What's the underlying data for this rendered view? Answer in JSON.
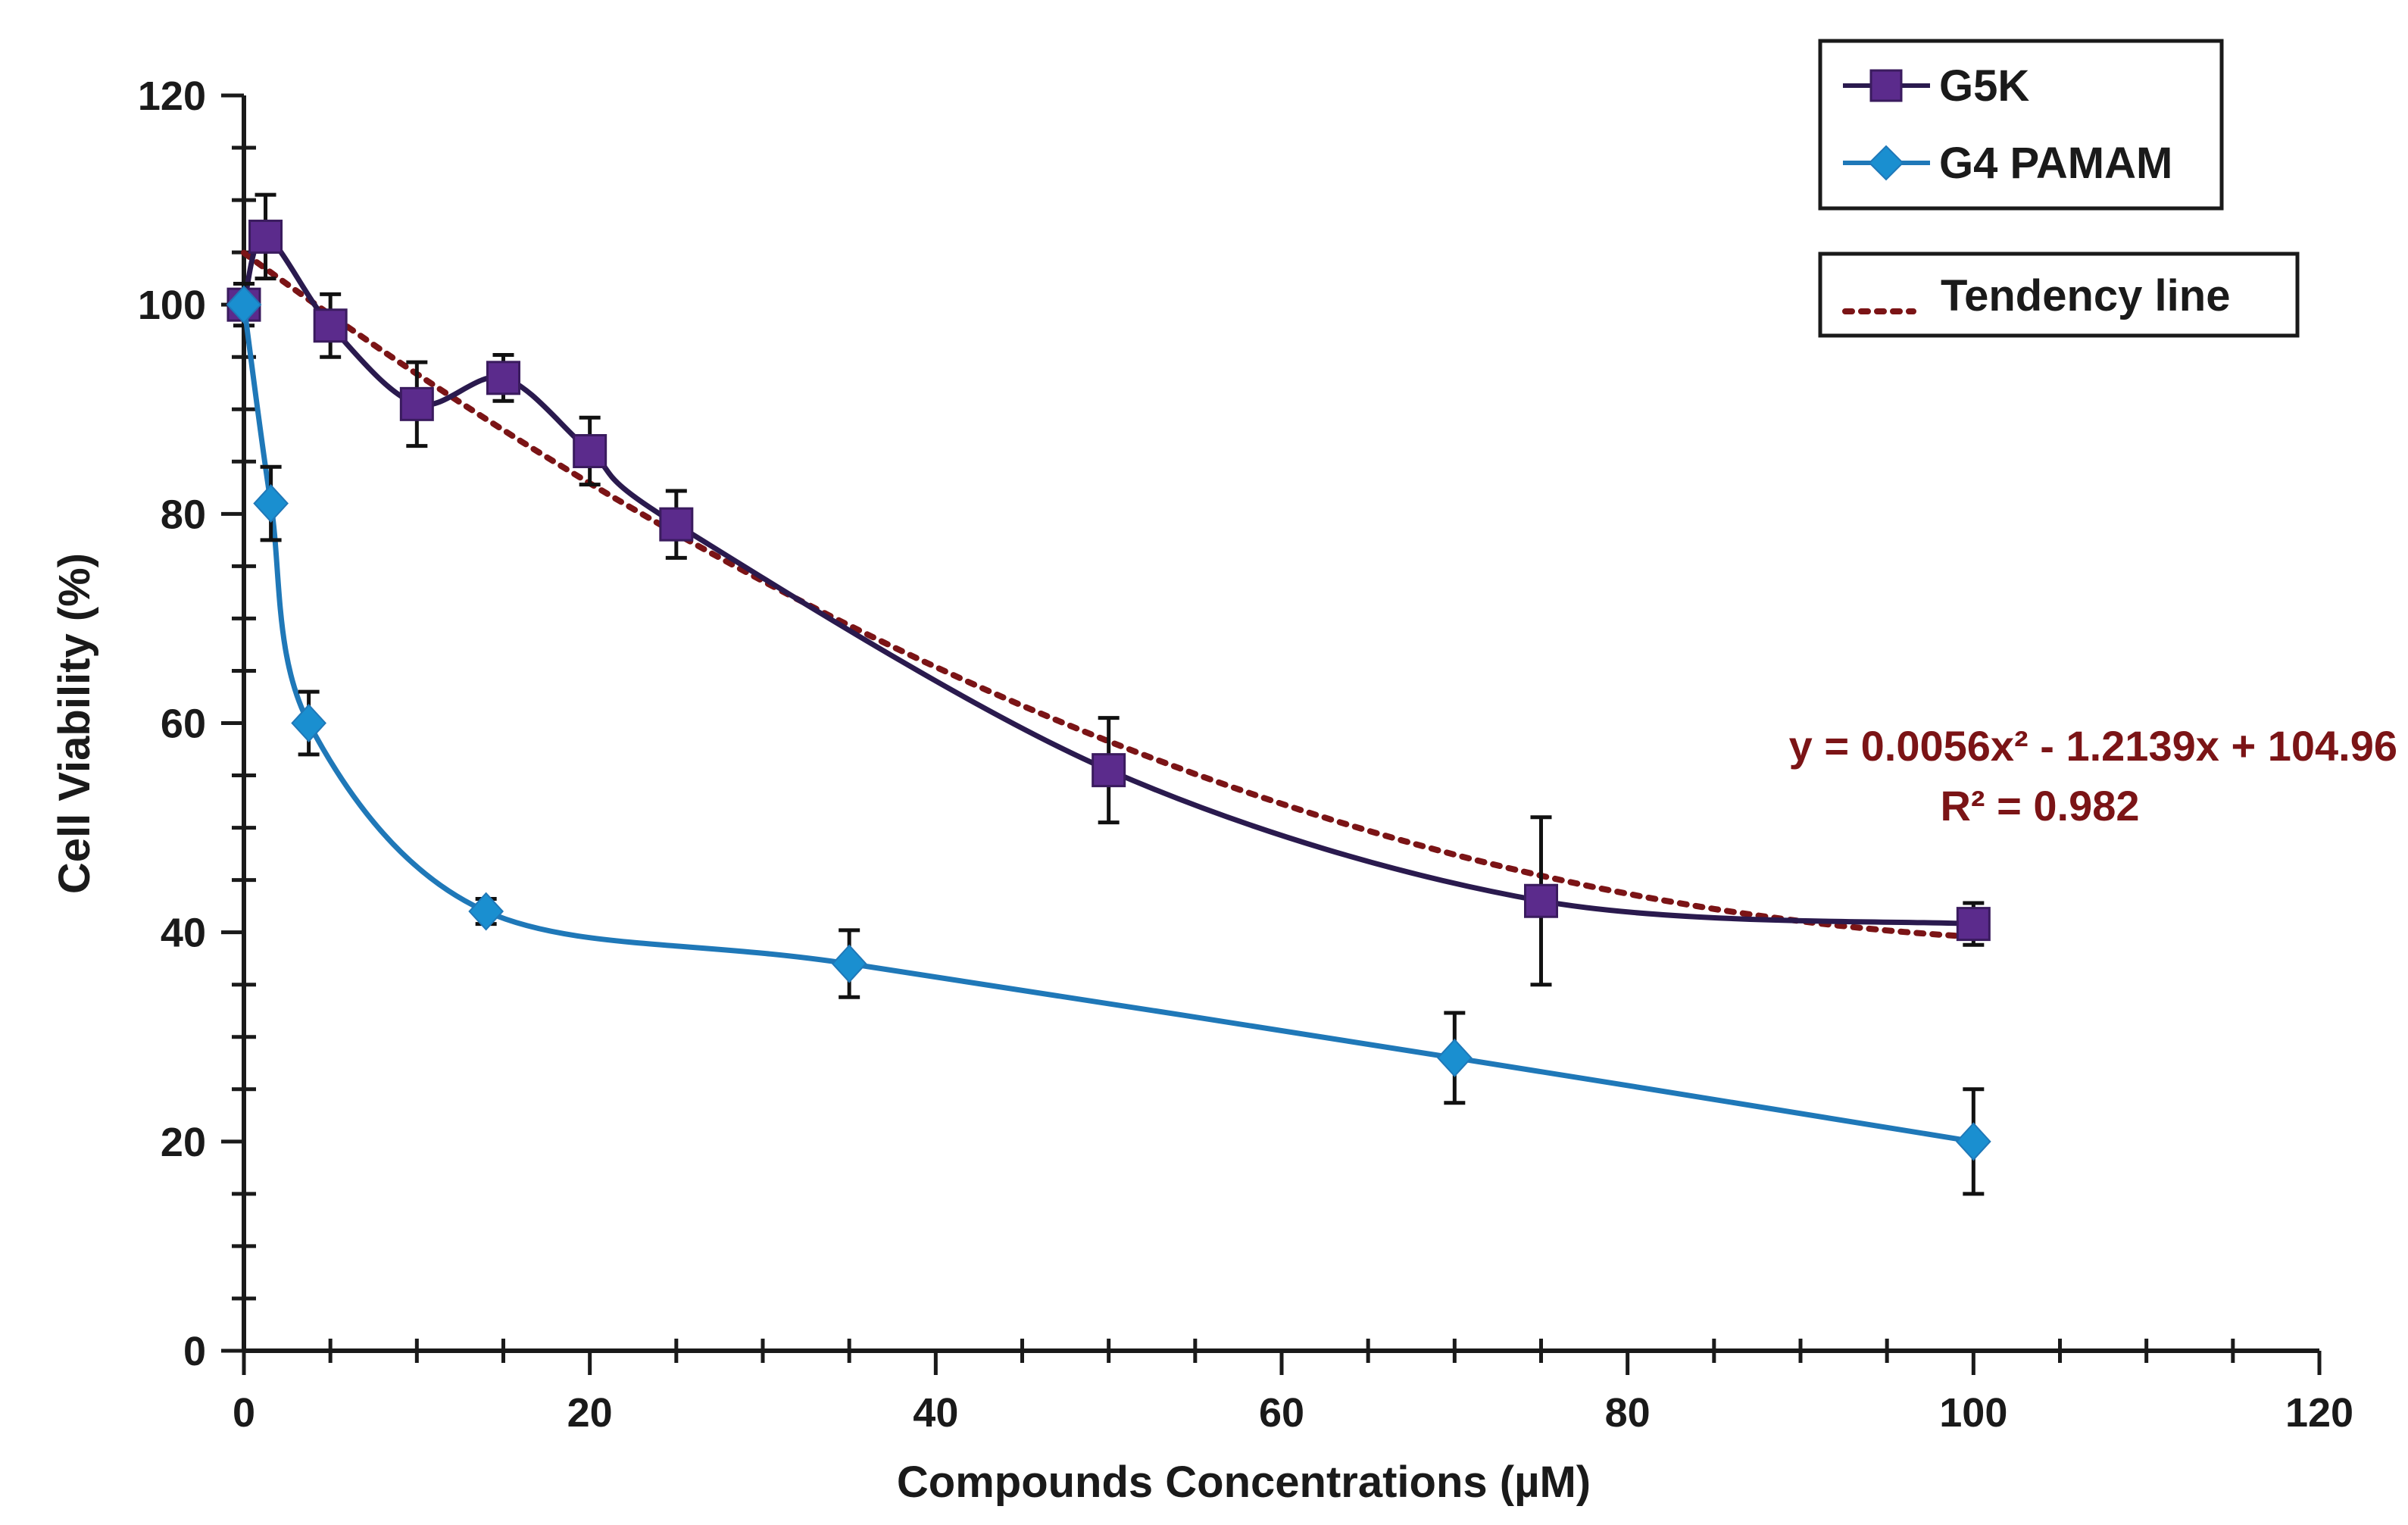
{
  "chart_data": {
    "type": "line",
    "xlabel": "Compounds Concentrations (µM)",
    "ylabel": "Cell Viability (%)",
    "xlim": [
      0,
      120
    ],
    "ylim": [
      0,
      120
    ],
    "x_ticks": [
      0,
      20,
      40,
      60,
      80,
      100,
      120
    ],
    "y_ticks": [
      0,
      20,
      40,
      60,
      80,
      100,
      120
    ],
    "x_minor_step": 5,
    "y_minor_step": 5,
    "grid": false,
    "series": [
      {
        "name": "G5K",
        "color": "#5b2b8c",
        "line_color": "#2a1a4e",
        "marker": "square",
        "x": [
          0,
          1.25,
          5,
          10,
          15,
          20,
          25,
          50,
          75,
          100
        ],
        "y": [
          100,
          106.5,
          98,
          90.5,
          93,
          86,
          79,
          55.5,
          43,
          40.8
        ],
        "error": [
          2,
          4,
          3,
          4,
          2.2,
          3.2,
          3.2,
          5,
          8,
          2
        ]
      },
      {
        "name": "G4 PAMAM",
        "color": "#1a8fd0",
        "line_color": "#1f78b8",
        "marker": "diamond",
        "x": [
          0,
          1.56,
          3.75,
          14,
          35,
          70,
          100
        ],
        "y": [
          100,
          81,
          60,
          42,
          37,
          28,
          20
        ],
        "error": [
          0,
          3.5,
          3,
          1.2,
          3.2,
          4.3,
          5
        ]
      }
    ],
    "trendline": {
      "name": "Tendency line",
      "color": "#7b1416",
      "style": "dotted",
      "coefficients": [
        0.0056,
        -1.2139,
        104.96
      ],
      "x_range": [
        0,
        100
      ],
      "equation": "y = 0.0056x² - 1.2139x + 104.96",
      "r_squared": "R² = 0.982"
    },
    "legend": {
      "placement": "top-right",
      "entries": [
        "G5K",
        "G4 PAMAM"
      ],
      "trend_entry": "Tendency line"
    }
  }
}
